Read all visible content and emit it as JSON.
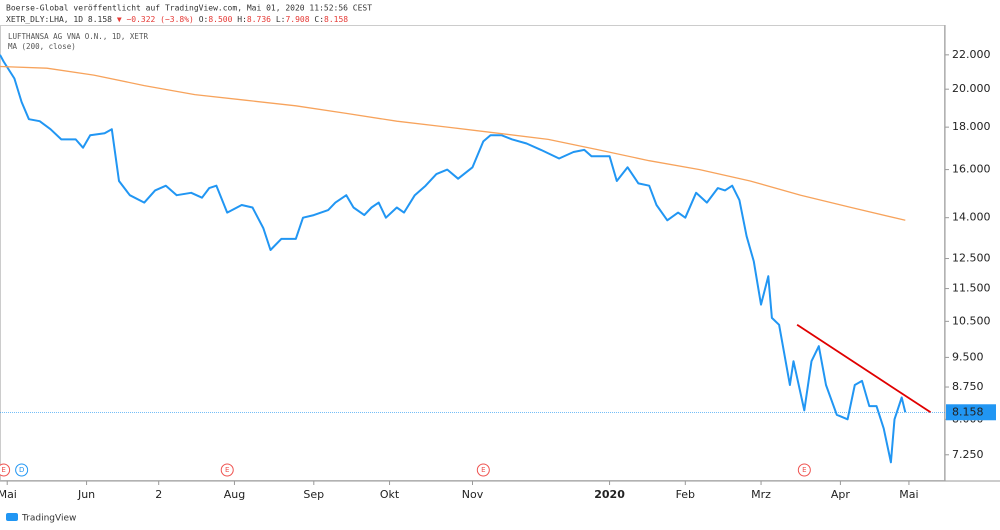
{
  "header": {
    "publisher": "Boerse-Global veröffentlicht auf TradingView.com, Mai 01, 2020 11:52:56 CEST",
    "symbol": "XETR_DLY:LHA, 1D",
    "last": "8.158",
    "change": "▼ −0.322 (−3.8%)",
    "ohlc": [
      {
        "key": "O:",
        "value": "8.500"
      },
      {
        "key": "H:",
        "value": "8.736"
      },
      {
        "key": "L:",
        "value": "7.908"
      },
      {
        "key": "C:",
        "value": "8.158"
      }
    ]
  },
  "footer": "TradingView",
  "chart_data": {
    "type": "line",
    "log_scale": true,
    "grid": false,
    "legend": [
      "LUFTHANSA AG VNA O.N., 1D, XETR",
      "MA (200, close)"
    ],
    "xlim": [
      0,
      262
    ],
    "xticks": [
      {
        "value": 2,
        "label": "Mai"
      },
      {
        "value": 24,
        "label": "Jun"
      },
      {
        "value": 44,
        "label": "2"
      },
      {
        "value": 65,
        "label": "Aug"
      },
      {
        "value": 87,
        "label": "Sep"
      },
      {
        "value": 108,
        "label": "Okt"
      },
      {
        "value": 131,
        "label": "Nov"
      },
      {
        "value": 169,
        "label": "2020"
      },
      {
        "value": 190,
        "label": "Feb"
      },
      {
        "value": 211,
        "label": "Mrz"
      },
      {
        "value": 233,
        "label": "Apr"
      },
      {
        "value": 252,
        "label": "Mai"
      }
    ],
    "ylim": [
      6.76,
      23.9
    ],
    "yticks": [
      {
        "value": 7.25,
        "label": "7.250"
      },
      {
        "value": 8,
        "label": "8.000"
      },
      {
        "value": 8.75,
        "label": "8.750"
      },
      {
        "value": 9.5,
        "label": "9.500"
      },
      {
        "value": 10.5,
        "label": "10.500"
      },
      {
        "value": 11.5,
        "label": "11.500"
      },
      {
        "value": 12.5,
        "label": "12.500"
      },
      {
        "value": 14,
        "label": "14.000"
      },
      {
        "value": 16,
        "label": "16.000"
      },
      {
        "value": 18,
        "label": "18.000"
      },
      {
        "value": 20,
        "label": "20.000"
      },
      {
        "value": 22,
        "label": "22.000"
      }
    ],
    "series": [
      {
        "name": "LUFTHANSA AG VNA O.N., 1D, XETR",
        "color": "#2196f3",
        "x": [
          0,
          1,
          4,
          6,
          8,
          11,
          14,
          17,
          21,
          23,
          25,
          29,
          31,
          33,
          36,
          40,
          43,
          46,
          49,
          53,
          56,
          58,
          60,
          63,
          67,
          70,
          73,
          75,
          78,
          82,
          84,
          87,
          91,
          93,
          96,
          98,
          101,
          103,
          105,
          107,
          110,
          112,
          115,
          118,
          121,
          124,
          127,
          131,
          134,
          136,
          139,
          142,
          146,
          150,
          155,
          159,
          162,
          164,
          169,
          171,
          174,
          177,
          180,
          182,
          185,
          188,
          190,
          193,
          196,
          199,
          201,
          203,
          205,
          207,
          209,
          211,
          213,
          214,
          216,
          219,
          220,
          223,
          225,
          227,
          229,
          232,
          235,
          237,
          239,
          241,
          243,
          245,
          247,
          248,
          250,
          251
        ],
        "values": [
          22.0,
          21.6,
          20.6,
          19.3,
          18.4,
          18.3,
          17.9,
          17.4,
          17.4,
          17.0,
          17.6,
          17.7,
          17.9,
          15.5,
          14.9,
          14.6,
          15.1,
          15.3,
          14.9,
          15.0,
          14.8,
          15.2,
          15.3,
          14.2,
          14.5,
          14.4,
          13.6,
          12.8,
          13.2,
          13.2,
          14.0,
          14.1,
          14.3,
          14.6,
          14.9,
          14.4,
          14.1,
          14.4,
          14.6,
          14.0,
          14.4,
          14.2,
          14.9,
          15.3,
          15.8,
          16.0,
          15.6,
          16.1,
          17.3,
          17.6,
          17.6,
          17.4,
          17.2,
          16.9,
          16.5,
          16.8,
          16.9,
          16.6,
          16.6,
          15.5,
          16.1,
          15.4,
          15.3,
          14.5,
          13.9,
          14.2,
          14.0,
          15.0,
          14.6,
          15.2,
          15.1,
          15.3,
          14.7,
          13.3,
          12.4,
          11.0,
          11.9,
          10.6,
          10.4,
          8.8,
          9.4,
          8.2,
          9.4,
          9.8,
          8.8,
          8.1,
          8.0,
          8.8,
          8.9,
          8.3,
          8.3,
          7.8,
          7.1,
          8.0,
          8.5,
          8.158
        ]
      },
      {
        "name": "MA (200, close)",
        "color": "#f7a35c",
        "x": [
          0,
          13,
          26,
          40,
          54,
          68,
          82,
          96,
          110,
          124,
          138,
          152,
          166,
          180,
          194,
          208,
          222,
          236,
          251
        ],
        "values": [
          21.3,
          21.2,
          20.8,
          20.2,
          19.7,
          19.4,
          19.1,
          18.7,
          18.3,
          18.0,
          17.7,
          17.4,
          16.9,
          16.4,
          16.0,
          15.5,
          14.9,
          14.4,
          13.9
        ]
      }
    ],
    "trendline": {
      "color": "#e00000",
      "x": [
        221,
        258
      ],
      "values": [
        10.4,
        8.158
      ]
    },
    "last_price": 8.158,
    "events": [
      {
        "x": 1,
        "label": "E"
      },
      {
        "x": 6,
        "label": "D"
      },
      {
        "x": 63,
        "label": "E"
      },
      {
        "x": 134,
        "label": "E"
      },
      {
        "x": 223,
        "label": "E"
      }
    ]
  }
}
